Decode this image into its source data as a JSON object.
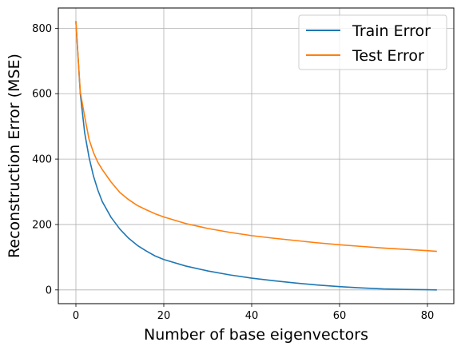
{
  "chart_data": {
    "type": "line",
    "xlabel": "Number of base eigenvectors",
    "ylabel": "Reconstruction Error (MSE)",
    "xlim": [
      -4,
      86
    ],
    "ylim": [
      -42,
      862
    ],
    "xticks": [
      0,
      20,
      40,
      60,
      80
    ],
    "yticks": [
      0,
      200,
      400,
      600,
      800
    ],
    "grid": true,
    "legend_position": "top-right",
    "x": [
      0,
      1,
      2,
      3,
      4,
      5,
      6,
      8,
      10,
      12,
      14,
      16,
      18,
      20,
      25,
      30,
      35,
      40,
      45,
      50,
      55,
      60,
      65,
      70,
      75,
      80,
      82
    ],
    "series": [
      {
        "name": "Train Error",
        "color": "#1f77b4",
        "values": [
          820,
          600,
          480,
          405,
          348,
          305,
          270,
          222,
          186,
          158,
          136,
          119,
          104,
          93,
          73,
          58,
          46,
          36,
          28,
          21,
          15,
          10,
          6,
          3,
          1.5,
          0.5,
          0
        ]
      },
      {
        "name": "Test Error",
        "color": "#ff7f0e",
        "values": [
          820,
          605,
          530,
          460,
          420,
          390,
          368,
          330,
          298,
          276,
          258,
          245,
          233,
          223,
          203,
          188,
          176,
          166,
          158,
          151,
          144,
          138,
          133,
          128,
          124,
          120,
          118
        ]
      }
    ]
  }
}
